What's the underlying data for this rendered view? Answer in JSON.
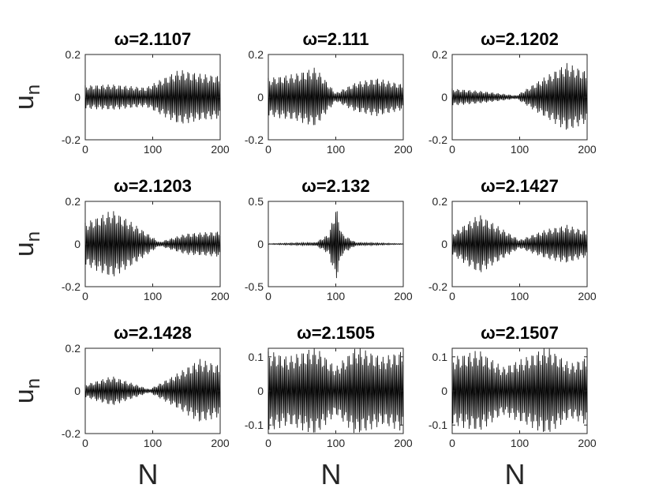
{
  "chart_data": [
    {
      "type": "line",
      "title": "ω=2.1107",
      "ylabel": "u_n",
      "xlabel": "",
      "xlim": [
        0,
        200
      ],
      "ylim": [
        -0.2,
        0.2
      ],
      "xticks": [
        "0",
        "100",
        "200"
      ],
      "yticks": [
        "0.2",
        "0",
        "-0.2"
      ],
      "n_points": 201,
      "envelope": [
        [
          0,
          0.055
        ],
        [
          40,
          0.06
        ],
        [
          90,
          0.045
        ],
        [
          110,
          0.08
        ],
        [
          140,
          0.13
        ],
        [
          170,
          0.11
        ],
        [
          200,
          0.1
        ]
      ]
    },
    {
      "type": "line",
      "title": "ω=2.111",
      "ylabel": "",
      "xlabel": "",
      "xlim": [
        0,
        200
      ],
      "ylim": [
        -0.2,
        0.2
      ],
      "xticks": [
        "0",
        "100",
        "200"
      ],
      "yticks": [
        "0.2",
        "0",
        "-0.2"
      ],
      "n_points": 201,
      "envelope": [
        [
          0,
          0.09
        ],
        [
          40,
          0.11
        ],
        [
          70,
          0.14
        ],
        [
          100,
          0.02
        ],
        [
          130,
          0.07
        ],
        [
          160,
          0.09
        ],
        [
          200,
          0.06
        ]
      ]
    },
    {
      "type": "line",
      "title": "ω=2.1202",
      "ylabel": "",
      "xlabel": "",
      "xlim": [
        0,
        200
      ],
      "ylim": [
        -0.2,
        0.2
      ],
      "xticks": [
        "0",
        "100",
        "200"
      ],
      "yticks": [
        "0.2",
        "0",
        "-0.2"
      ],
      "n_points": 201,
      "envelope": [
        [
          0,
          0.04
        ],
        [
          40,
          0.03
        ],
        [
          95,
          0.008
        ],
        [
          130,
          0.08
        ],
        [
          170,
          0.16
        ],
        [
          200,
          0.12
        ]
      ]
    },
    {
      "type": "line",
      "title": "ω=2.1203",
      "ylabel": "u_n",
      "xlabel": "",
      "xlim": [
        0,
        200
      ],
      "ylim": [
        -0.2,
        0.2
      ],
      "xticks": [
        "0",
        "100",
        "200"
      ],
      "yticks": [
        "0.2",
        "0",
        "-0.2"
      ],
      "n_points": 201,
      "envelope": [
        [
          0,
          0.1
        ],
        [
          40,
          0.16
        ],
        [
          70,
          0.1
        ],
        [
          110,
          0.01
        ],
        [
          150,
          0.05
        ],
        [
          200,
          0.06
        ]
      ]
    },
    {
      "type": "line",
      "title": "ω=2.132",
      "ylabel": "",
      "xlabel": "",
      "xlim": [
        0,
        200
      ],
      "ylim": [
        -0.5,
        0.5
      ],
      "xticks": [
        "0",
        "100",
        "200"
      ],
      "yticks": [
        "0.5",
        "0",
        "-0.5"
      ],
      "n_points": 201,
      "envelope": [
        [
          0,
          0.004
        ],
        [
          70,
          0.02
        ],
        [
          90,
          0.12
        ],
        [
          100,
          0.45
        ],
        [
          110,
          0.12
        ],
        [
          130,
          0.02
        ],
        [
          200,
          0.004
        ]
      ]
    },
    {
      "type": "line",
      "title": "ω=2.1427",
      "ylabel": "",
      "xlabel": "",
      "xlim": [
        0,
        200
      ],
      "ylim": [
        -0.2,
        0.2
      ],
      "xticks": [
        "0",
        "100",
        "200"
      ],
      "yticks": [
        "0.2",
        "0",
        "-0.2"
      ],
      "n_points": 201,
      "envelope": [
        [
          0,
          0.05
        ],
        [
          40,
          0.14
        ],
        [
          100,
          0.02
        ],
        [
          140,
          0.07
        ],
        [
          170,
          0.09
        ],
        [
          200,
          0.06
        ]
      ]
    },
    {
      "type": "line",
      "title": "ω=2.1428",
      "ylabel": "u_n",
      "xlabel": "N",
      "xlim": [
        0,
        200
      ],
      "ylim": [
        -0.2,
        0.2
      ],
      "xticks": [
        "0",
        "100",
        "200"
      ],
      "yticks": [
        "0.2",
        "0",
        "-0.2"
      ],
      "n_points": 201,
      "envelope": [
        [
          0,
          0.03
        ],
        [
          40,
          0.07
        ],
        [
          95,
          0.008
        ],
        [
          130,
          0.07
        ],
        [
          170,
          0.15
        ],
        [
          200,
          0.12
        ]
      ]
    },
    {
      "type": "line",
      "title": "ω=2.1505",
      "ylabel": "",
      "xlabel": "N",
      "xlim": [
        0,
        200
      ],
      "ylim": [
        -0.125,
        0.125
      ],
      "xticks": [
        "0",
        "100",
        "200"
      ],
      "yticks": [
        "0.1",
        "0",
        "-0.1"
      ],
      "n_points": 201,
      "envelope": [
        [
          0,
          0.12
        ],
        [
          30,
          0.1
        ],
        [
          70,
          0.13
        ],
        [
          100,
          0.07
        ],
        [
          130,
          0.13
        ],
        [
          170,
          0.1
        ],
        [
          200,
          0.12
        ]
      ]
    },
    {
      "type": "line",
      "title": "ω=2.1507",
      "ylabel": "",
      "xlabel": "N",
      "xlim": [
        0,
        200
      ],
      "ylim": [
        -0.125,
        0.125
      ],
      "xticks": [
        "0",
        "100",
        "200"
      ],
      "yticks": [
        "0.1",
        "0",
        "-0.1"
      ],
      "n_points": 201,
      "envelope": [
        [
          0,
          0.1
        ],
        [
          40,
          0.12
        ],
        [
          75,
          0.07
        ],
        [
          110,
          0.1
        ],
        [
          140,
          0.13
        ],
        [
          175,
          0.08
        ],
        [
          200,
          0.1
        ]
      ]
    }
  ]
}
